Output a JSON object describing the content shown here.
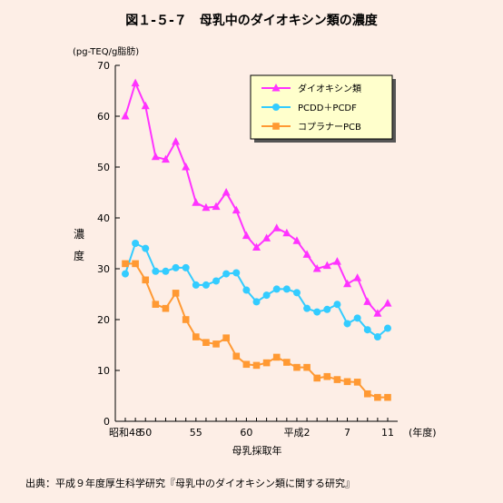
{
  "figure_title": "図１-５-７　母乳中のダイオキシン類の濃度",
  "source_note": "出典：平成９年度厚生科学研究『母乳中のダイオキシン類に関する研究』",
  "chart_data": {
    "type": "line",
    "title": "",
    "ylabel": "濃\n度",
    "y_unit": "(pg-TEQ/g脂肪)",
    "xlabel": "母乳採取年",
    "x_unit": "(年度)",
    "ylim": [
      0,
      70
    ],
    "y_ticks": [
      0,
      10,
      20,
      30,
      40,
      50,
      60,
      70
    ],
    "grid": false,
    "legend_position": "top-right",
    "x": [
      "昭和48",
      "49",
      "50",
      "51",
      "52",
      "53",
      "54",
      "55",
      "56",
      "57",
      "58",
      "59",
      "60",
      "61",
      "62",
      "63",
      "平成元",
      "平成2",
      "3",
      "4",
      "5",
      "6",
      "7",
      "8",
      "9",
      "10",
      "11"
    ],
    "x_tick_labels": [
      {
        "index": 0,
        "label": "昭和48"
      },
      {
        "index": 2,
        "label": "50"
      },
      {
        "index": 7,
        "label": "55"
      },
      {
        "index": 12,
        "label": "60"
      },
      {
        "index": 17,
        "label": "平成2"
      },
      {
        "index": 22,
        "label": "7"
      },
      {
        "index": 26,
        "label": "11"
      }
    ],
    "series": [
      {
        "name": "ダイオキシン類",
        "color": "#FF33FF",
        "marker": "triangle",
        "values": [
          60,
          66.5,
          62,
          52,
          51.5,
          55,
          50,
          43,
          42,
          42.2,
          45,
          41.5,
          36.5,
          34.2,
          36,
          38,
          37,
          35.5,
          32.8,
          30,
          30.6,
          31.4,
          27,
          28.2,
          23.5,
          21.2,
          23.2
        ]
      },
      {
        "name": "PCDD＋PCDF",
        "color": "#33CCFF",
        "marker": "circle",
        "values": [
          29,
          35,
          34,
          29.5,
          29.5,
          30.2,
          30.2,
          26.8,
          26.8,
          27.6,
          29,
          29.2,
          25.8,
          23.5,
          24.8,
          26,
          26,
          25.3,
          22.2,
          21.5,
          22,
          23,
          19.2,
          20.3,
          18,
          16.6,
          18.3
        ]
      },
      {
        "name": "コプラナーPCB",
        "color": "#FF9933",
        "marker": "square",
        "values": [
          31,
          31,
          27.8,
          23,
          22.2,
          25.2,
          20,
          16.6,
          15.5,
          15.2,
          16.4,
          12.8,
          11.2,
          11,
          11.5,
          12.6,
          11.6,
          10.6,
          10.6,
          8.5,
          8.8,
          8.2,
          7.8,
          7.7,
          5.4,
          4.7,
          4.7
        ]
      }
    ]
  }
}
